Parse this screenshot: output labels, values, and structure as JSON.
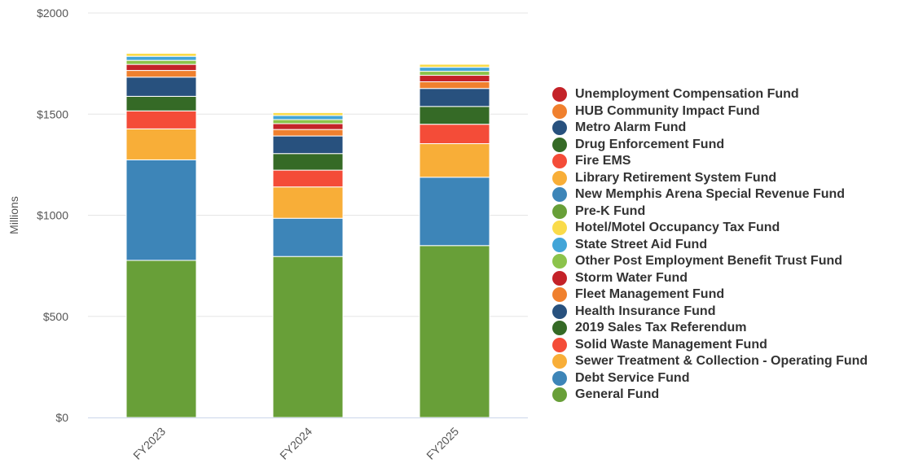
{
  "chart_data": {
    "type": "bar",
    "stacked": true,
    "categories": [
      "FY2023",
      "FY2024",
      "FY2025"
    ],
    "ylabel": "Millions",
    "ylim": [
      0,
      2000
    ],
    "yticks": [
      0,
      500,
      1000,
      1500,
      2000
    ],
    "ytick_labels": [
      "$0",
      "$500",
      "$1000",
      "$1500",
      "$2000"
    ],
    "grid": true,
    "legend_position": "right",
    "series": [
      {
        "name": "General Fund",
        "color": "#689f38",
        "values": [
          777,
          796,
          850
        ]
      },
      {
        "name": "Debt Service Fund",
        "color": "#3d85b8",
        "values": [
          497,
          189,
          338
        ]
      },
      {
        "name": "Sewer Treatment & Collection - Operating Fund",
        "color": "#f8ae38",
        "values": [
          153,
          155,
          166
        ]
      },
      {
        "name": "Solid Waste Management Fund",
        "color": "#f44c38",
        "values": [
          89,
          83,
          96
        ]
      },
      {
        "name": "2019 Sales Tax Referendum",
        "color": "#356a26",
        "values": [
          72,
          82,
          88
        ]
      },
      {
        "name": "Health Insurance Fund",
        "color": "#28517e",
        "values": [
          95,
          87,
          89
        ]
      },
      {
        "name": "Fleet Management Fund",
        "color": "#f0802e",
        "values": [
          33,
          32,
          33
        ]
      },
      {
        "name": "Storm Water Fund",
        "color": "#c42228",
        "values": [
          30,
          29,
          32
        ]
      },
      {
        "name": "Other Post Employment Benefit Trust Fund",
        "color": "#8cc34b",
        "values": [
          20,
          20,
          20
        ]
      },
      {
        "name": "State Street Aid Fund",
        "color": "#42a5d8",
        "values": [
          20,
          20,
          20
        ]
      },
      {
        "name": "Hotel/Motel Occupancy Tax Fund",
        "color": "#fadb4a",
        "values": [
          15,
          15,
          15
        ]
      },
      {
        "name": "Pre-K Fund",
        "color": "#689f38",
        "values": [
          3,
          3,
          3
        ]
      },
      {
        "name": "New Memphis Arena Special Revenue Fund",
        "color": "#3d85b8",
        "values": [
          3,
          3,
          3
        ]
      },
      {
        "name": "Library Retirement System Fund",
        "color": "#f8ae38",
        "values": [
          2,
          2,
          2
        ]
      },
      {
        "name": "Fire EMS",
        "color": "#f44c38",
        "values": [
          2,
          2,
          2
        ]
      },
      {
        "name": "Drug Enforcement Fund",
        "color": "#356a26",
        "values": [
          2,
          2,
          2
        ]
      },
      {
        "name": "Metro Alarm Fund",
        "color": "#28517e",
        "values": [
          1,
          1,
          1
        ]
      },
      {
        "name": "HUB Community Impact Fund",
        "color": "#f0802e",
        "values": [
          1,
          1,
          1
        ]
      },
      {
        "name": "Unemployment Compensation Fund",
        "color": "#c42228",
        "values": [
          1,
          1,
          1
        ]
      }
    ]
  }
}
